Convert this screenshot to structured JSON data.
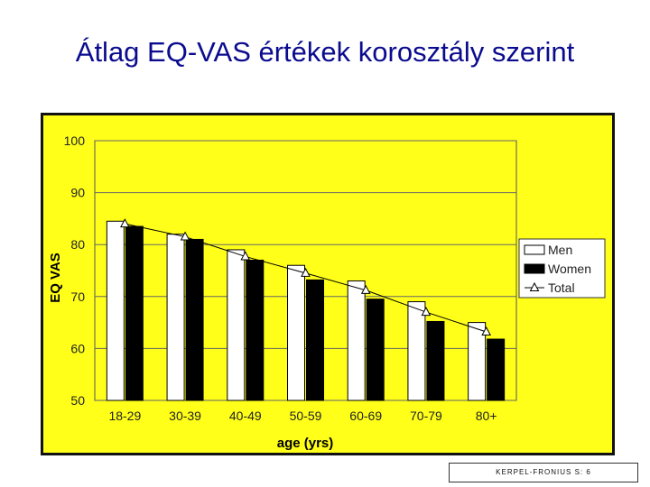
{
  "slide": {
    "title": "Átlag EQ-VAS értékek korosztály szerint",
    "footer": "KERPEL-FRONIUS S: 6"
  },
  "colors": {
    "background": "#ffff1a",
    "men": "#ffffff",
    "women": "#000000",
    "title": "#0b0b8f"
  },
  "chart_data": {
    "type": "bar",
    "title": "",
    "xlabel": "age (yrs)",
    "ylabel": "EQ VAS",
    "ylim": [
      50,
      100
    ],
    "yticks": [
      "50",
      "60",
      "70",
      "80",
      "90",
      "100"
    ],
    "categories": [
      "18-29",
      "30-39",
      "40-49",
      "50-59",
      "60-69",
      "70-79",
      "80+"
    ],
    "series": [
      {
        "name": "Men",
        "kind": "bar",
        "values": [
          84.5,
          82.0,
          79.0,
          76.0,
          73.0,
          69.0,
          65.0
        ]
      },
      {
        "name": "Women",
        "kind": "bar",
        "values": [
          83.5,
          81.0,
          77.0,
          73.2,
          69.5,
          65.2,
          61.8
        ]
      },
      {
        "name": "Total",
        "kind": "line",
        "marker": "triangle",
        "values": [
          84.0,
          81.5,
          77.7,
          74.5,
          71.2,
          67.0,
          63.2
        ]
      }
    ],
    "grid": true,
    "legend": "right"
  }
}
